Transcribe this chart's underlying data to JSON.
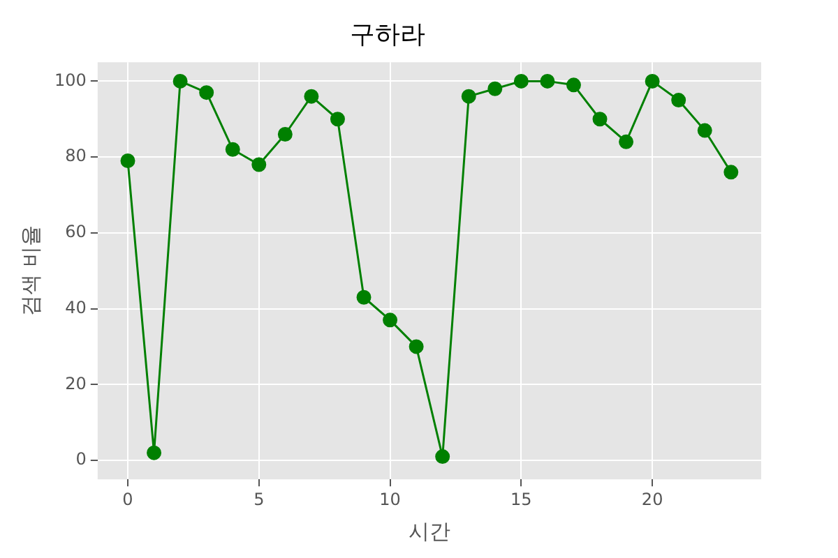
{
  "chart_data": {
    "type": "line",
    "title": "구하라",
    "xlabel": "시간",
    "ylabel": "검색 비율",
    "x": [
      0,
      1,
      2,
      3,
      4,
      5,
      6,
      7,
      8,
      9,
      10,
      11,
      12,
      13,
      14,
      15,
      16,
      17,
      18,
      19,
      20,
      21,
      22,
      23
    ],
    "series": [
      {
        "color": "#008000",
        "values": [
          79,
          2,
          100,
          97,
          82,
          78,
          86,
          96,
          90,
          43,
          37,
          30,
          1,
          96,
          98,
          100,
          100,
          99,
          90,
          84,
          100,
          95,
          87,
          76
        ]
      }
    ],
    "xlim": [
      -1.15,
      24.15
    ],
    "xticks": [
      0,
      5,
      10,
      15,
      20
    ],
    "ylim": [
      -5,
      105
    ],
    "yticks": [
      0,
      20,
      40,
      60,
      80,
      100
    ],
    "grid": true,
    "legend": false,
    "marker": "circle",
    "line_style": "solid"
  }
}
